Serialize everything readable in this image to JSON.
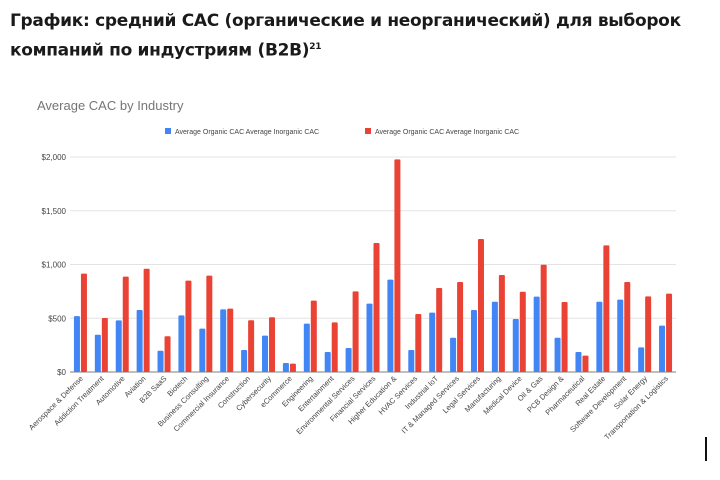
{
  "heading": {
    "text": "График: средний CAC (органические и неорганический) для выборок компаний по индустриям (B2B)",
    "footnote": "21"
  },
  "chart_data": {
    "type": "bar",
    "title": "Average CAC by Industry",
    "xlabel": "",
    "ylabel": "",
    "ylim": [
      0,
      2000
    ],
    "yticks": [
      "$0",
      "$500",
      "$1,000",
      "$1,500",
      "$2,000"
    ],
    "ytick_values": [
      0,
      500,
      1000,
      1500,
      2000
    ],
    "grid": true,
    "legend_position": "top",
    "categories": [
      "Aerospace & Defense",
      "Addiction Treatment",
      "Automotive",
      "Aviation",
      "B2B SaaS",
      "Biotech",
      "Business Consulting",
      "Commercial Insurance",
      "Construction",
      "Cybersecurity",
      "eCommerce",
      "Engineering",
      "Entertainment",
      "Environmental Services",
      "Financial Services",
      "Higher Education &",
      "HVAC Services",
      "Industrial IoT",
      "IT & Managed Services",
      "Legal Services",
      "Manufacturing",
      "Medical Device",
      "Oil & Gas",
      "PCB Design &",
      "Pharmaceutical",
      "Real Estate",
      "Software Development",
      "Solar Energy",
      "Transportation & Logistics"
    ],
    "series": [
      {
        "name": "Average Organic CAC Average Inorganic CAC",
        "color": "#4285f4",
        "values": [
          520,
          347,
          480,
          577,
          198,
          527,
          403,
          583,
          205,
          338,
          84,
          450,
          186,
          223,
          636,
          859,
          205,
          552,
          319,
          577,
          654,
          493,
          701,
          319,
          186,
          654,
          673,
          229,
          431
        ]
      },
      {
        "name": "Average Organic CAC Average Inorganic CAC",
        "color": "#ea4335",
        "values": [
          915,
          502,
          887,
          961,
          332,
          850,
          896,
          589,
          481,
          509,
          78,
          664,
          462,
          750,
          1200,
          1978,
          540,
          781,
          837,
          1237,
          902,
          747,
          998,
          651,
          152,
          1178,
          837,
          704,
          729
        ]
      }
    ]
  }
}
